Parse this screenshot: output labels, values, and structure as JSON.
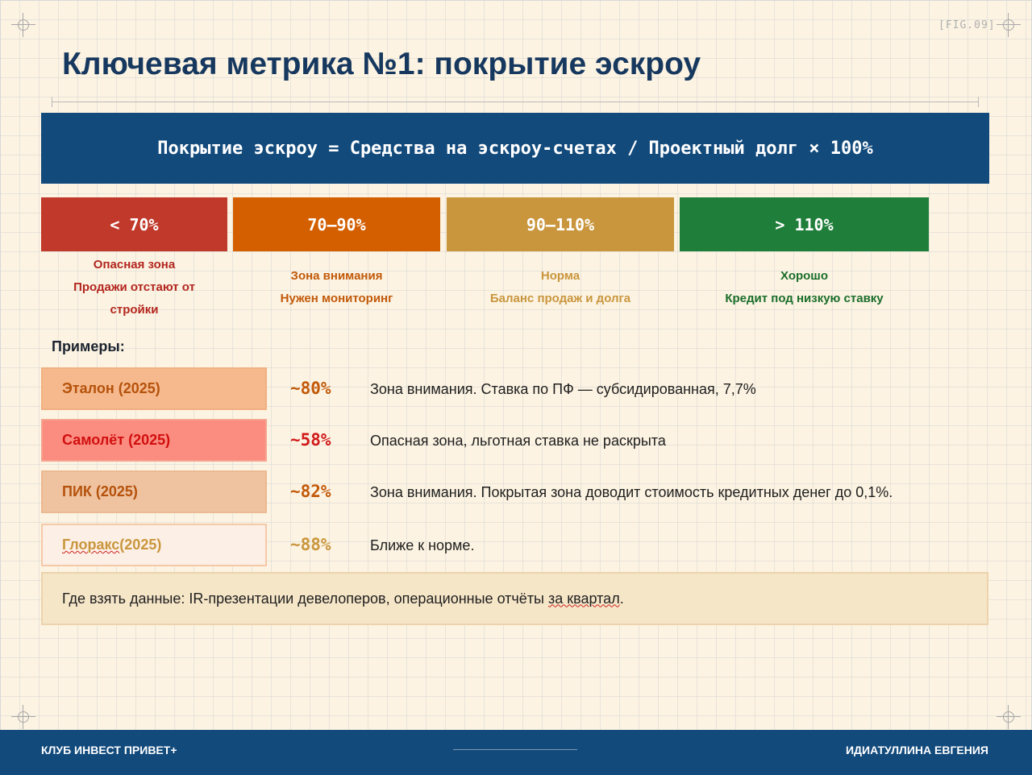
{
  "fig_label": "[FIG.09]",
  "title": "Ключевая метрика №1: покрытие эскроу",
  "formula": "Покрытие эскроу = Средства на эскроу-счетах / Проектный долг × 100%",
  "zones": [
    {
      "range": "< 70%",
      "line1": "Опасная зона",
      "line2": "Продажи отстают от",
      "line3": "стройки",
      "color": "#c0392b"
    },
    {
      "range": "70–90%",
      "line1": "Зона внимания",
      "line2": "Нужен мониторинг",
      "color": "#d35400"
    },
    {
      "range": "90–110%",
      "line1": "Норма",
      "line2": "Баланс продаж и долга",
      "color": "#c9963d"
    },
    {
      "range": "> 110%",
      "line1": "Хорошо",
      "line2": "Кредит под низкую ставку",
      "color": "#1e7e34"
    }
  ],
  "examples_title": "Примеры:",
  "examples": [
    {
      "company": "Эталон (2025)",
      "percent": "~80%",
      "comment": "Зона внимания. Ставка по ПФ — субсидированная, 7,7%"
    },
    {
      "company": "Самолёт (2025)",
      "percent": "~58%",
      "comment": "Опасная зона, льготная ставка не раскрыта"
    },
    {
      "company": "ПИК (2025)",
      "percent": "~82%",
      "comment": "Зона внимания. Покрытая зона доводит стоимость кредитных денег до 0,1%."
    },
    {
      "company_name": "Глоракс",
      "company_year": " (2025)",
      "percent": "~88%",
      "comment": "Ближе к норме."
    }
  ],
  "source_prefix": "Где взять данные: IR-презентации девелоперов, операционные отчёты ",
  "source_tail": "за квартал",
  "source_end": ".",
  "footer": {
    "left": "КЛУБ ИНВЕСТ ПРИВЕТ+",
    "right": "ИДИАТУЛЛИНА ЕВГЕНИЯ"
  }
}
